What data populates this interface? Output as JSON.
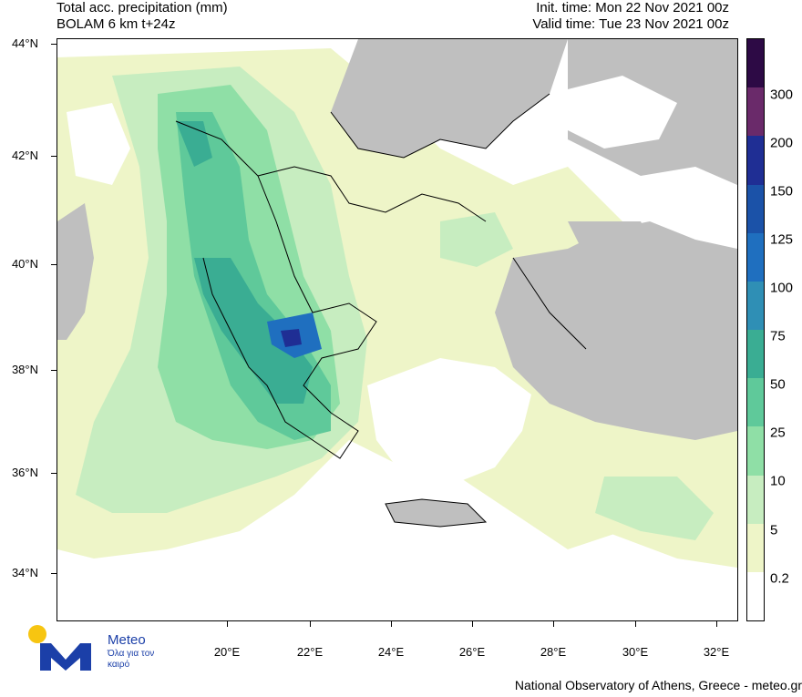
{
  "header": {
    "title_line1": "Total acc. precipitation (mm)",
    "title_line2": "BOLAM 6 km t+24z",
    "init_time": "Init. time: Mon 22 Nov 2021 00z",
    "valid_time": "Valid time: Tue 23 Nov 2021 00z"
  },
  "axes": {
    "lat_labels": [
      "44°N",
      "42°N",
      "40°N",
      "38°N",
      "36°N",
      "34°N"
    ],
    "lon_labels": [
      "20°E",
      "22°E",
      "24°E",
      "26°E",
      "28°E",
      "30°E",
      "32°E"
    ]
  },
  "legend": {
    "levels": [
      "0.2",
      "5",
      "10",
      "25",
      "50",
      "75",
      "100",
      "125",
      "150",
      "200",
      "300"
    ],
    "colors": [
      "#ffffff",
      "#eef5c8",
      "#c7edc0",
      "#8fdfa6",
      "#5fc99a",
      "#3aad93",
      "#2f8fb5",
      "#1f6fbf",
      "#1b52a8",
      "#1f2e94",
      "#6a2a6a",
      "#2d0a45"
    ]
  },
  "land_color": "#bfbfbf",
  "logo": {
    "name": "Meteo",
    "tagline": "Όλα για τον καιρό"
  },
  "footer": "National Observatory of Athens, Greece - meteo.gr"
}
